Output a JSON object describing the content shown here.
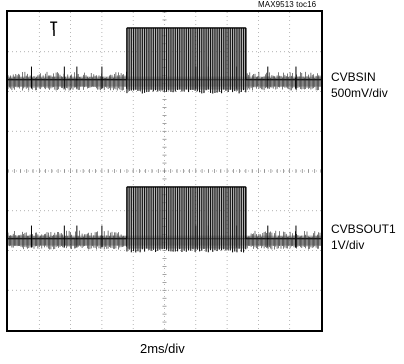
{
  "figure_tag": "MAX9513 toc16",
  "chart_data": {
    "type": "line",
    "title": "",
    "xlabel": "2ms/div",
    "ylabel": "",
    "grid": true,
    "divisions": {
      "x": 10,
      "y": 8
    },
    "x_unit": "div",
    "xlim": [
      0,
      10
    ],
    "series": [
      {
        "name": "CVBSIN",
        "scale": "500mV/div",
        "baseline_div": 6.3,
        "burst_level_div": 7.6,
        "burst_start_div": 3.8,
        "burst_end_div": 7.6,
        "marks_div": [
          0.75,
          1.8,
          2.2,
          3.0,
          5.0,
          6.0,
          6.4,
          7.3,
          8.3,
          9.2
        ]
      },
      {
        "name": "CVBSOUT1",
        "scale": "1V/div",
        "baseline_div": 2.3,
        "burst_level_div": 3.6,
        "burst_start_div": 3.8,
        "burst_end_div": 7.6,
        "marks_div": [
          0.75,
          1.8,
          2.2,
          3.0,
          5.0,
          6.0,
          6.4,
          7.3,
          8.3,
          9.2
        ]
      }
    ],
    "trigger_marker": "T"
  }
}
